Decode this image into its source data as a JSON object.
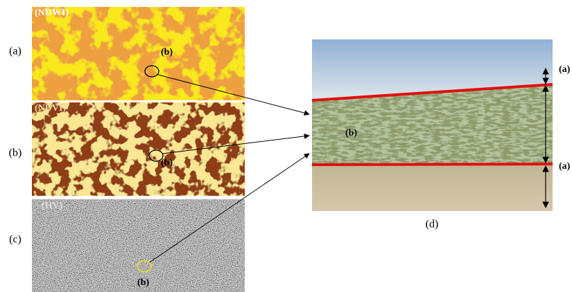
{
  "panels": [
    {
      "label": "(a)",
      "image_title": "(NDWI)",
      "marker": "(b)"
    },
    {
      "label": "(b)",
      "image_title": "(NDVI)",
      "marker": "(b)"
    },
    {
      "label": "(c)",
      "image_title": "(HV)",
      "marker": "(b)"
    }
  ],
  "photo": {
    "label": "(d)",
    "zones": [
      "(a)",
      "(b)",
      "(a)"
    ]
  }
}
